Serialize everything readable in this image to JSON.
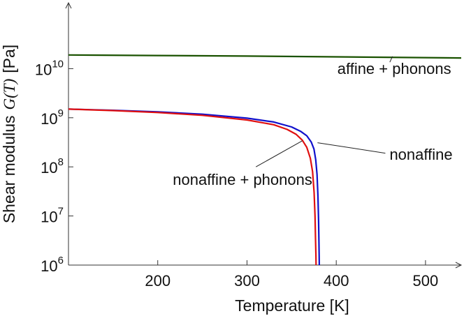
{
  "chart_data": {
    "type": "line",
    "xlabel": "Temperature [K]",
    "ylabel_main": "Shear modulus",
    "ylabel_symbol": "G(T)",
    "ylabel_unit": "[Pa]",
    "xlim": [
      100,
      540
    ],
    "ylim": [
      1000000.0,
      100000000000.0
    ],
    "yscale": "log",
    "xticks": [
      200,
      300,
      400,
      500
    ],
    "yticks": [
      {
        "value": 1000000.0,
        "base": "10",
        "exp": "6"
      },
      {
        "value": 10000000.0,
        "base": "10",
        "exp": "7"
      },
      {
        "value": 100000000.0,
        "base": "10",
        "exp": "8"
      },
      {
        "value": 1000000000.0,
        "base": "10",
        "exp": "9"
      },
      {
        "value": 10000000000.0,
        "base": "10",
        "exp": "10"
      }
    ],
    "series": [
      {
        "color": "#1a5200",
        "x": [
          100,
          200,
          300,
          400,
          540
        ],
        "y": [
          19000000000.0,
          18500000000.0,
          18000000000.0,
          17400000000.0,
          16500000000.0
        ]
      },
      {
        "color": "#1010cc",
        "x": [
          100,
          150,
          200,
          250,
          300,
          330,
          350,
          360,
          367,
          372,
          375,
          377,
          378.5,
          379.5,
          380.2,
          380.6,
          380.8,
          381
        ],
        "y": [
          1500000000.0,
          1420000000.0,
          1320000000.0,
          1180000000.0,
          980000000.0,
          820000000.0,
          650000000.0,
          530000000.0,
          430000000.0,
          320000000.0,
          230000000.0,
          140000000.0,
          70000000.0,
          25000000.0,
          8000000.0,
          3000000.0,
          1600000.0,
          1000000.0
        ]
      },
      {
        "color": "#e01010",
        "x": [
          100,
          150,
          200,
          250,
          300,
          330,
          345,
          355,
          362,
          367,
          371,
          373.5,
          375.2,
          376.2,
          376.8,
          377.2,
          377.4
        ],
        "y": [
          1500000000.0,
          1400000000.0,
          1280000000.0,
          1120000000.0,
          900000000.0,
          720000000.0,
          580000000.0,
          460000000.0,
          350000000.0,
          250000000.0,
          150000000.0,
          80000000.0,
          30000000.0,
          10000000.0,
          3500000.0,
          1600000.0,
          1000000.0
        ]
      }
    ],
    "annotations": [
      {
        "text": "affine + phonons",
        "x": 465,
        "y": 7800000000.0,
        "anchor": "middle",
        "leader_from": [
          460,
          13500000000.0
        ],
        "leader_to": [
          463,
          17800000000.0
        ]
      },
      {
        "text": "nonaffine",
        "x": 495,
        "y": 140000000.0,
        "anchor": "middle",
        "leader_from": [
          455,
          190000000.0
        ],
        "leader_to": [
          379,
          310000000.0
        ]
      },
      {
        "text": "nonaffine + phonons",
        "x": 295,
        "y": 43000000.0,
        "anchor": "middle",
        "leader_from": [
          310,
          100000000.0
        ],
        "leader_to": [
          362,
          340000000.0
        ]
      }
    ]
  }
}
